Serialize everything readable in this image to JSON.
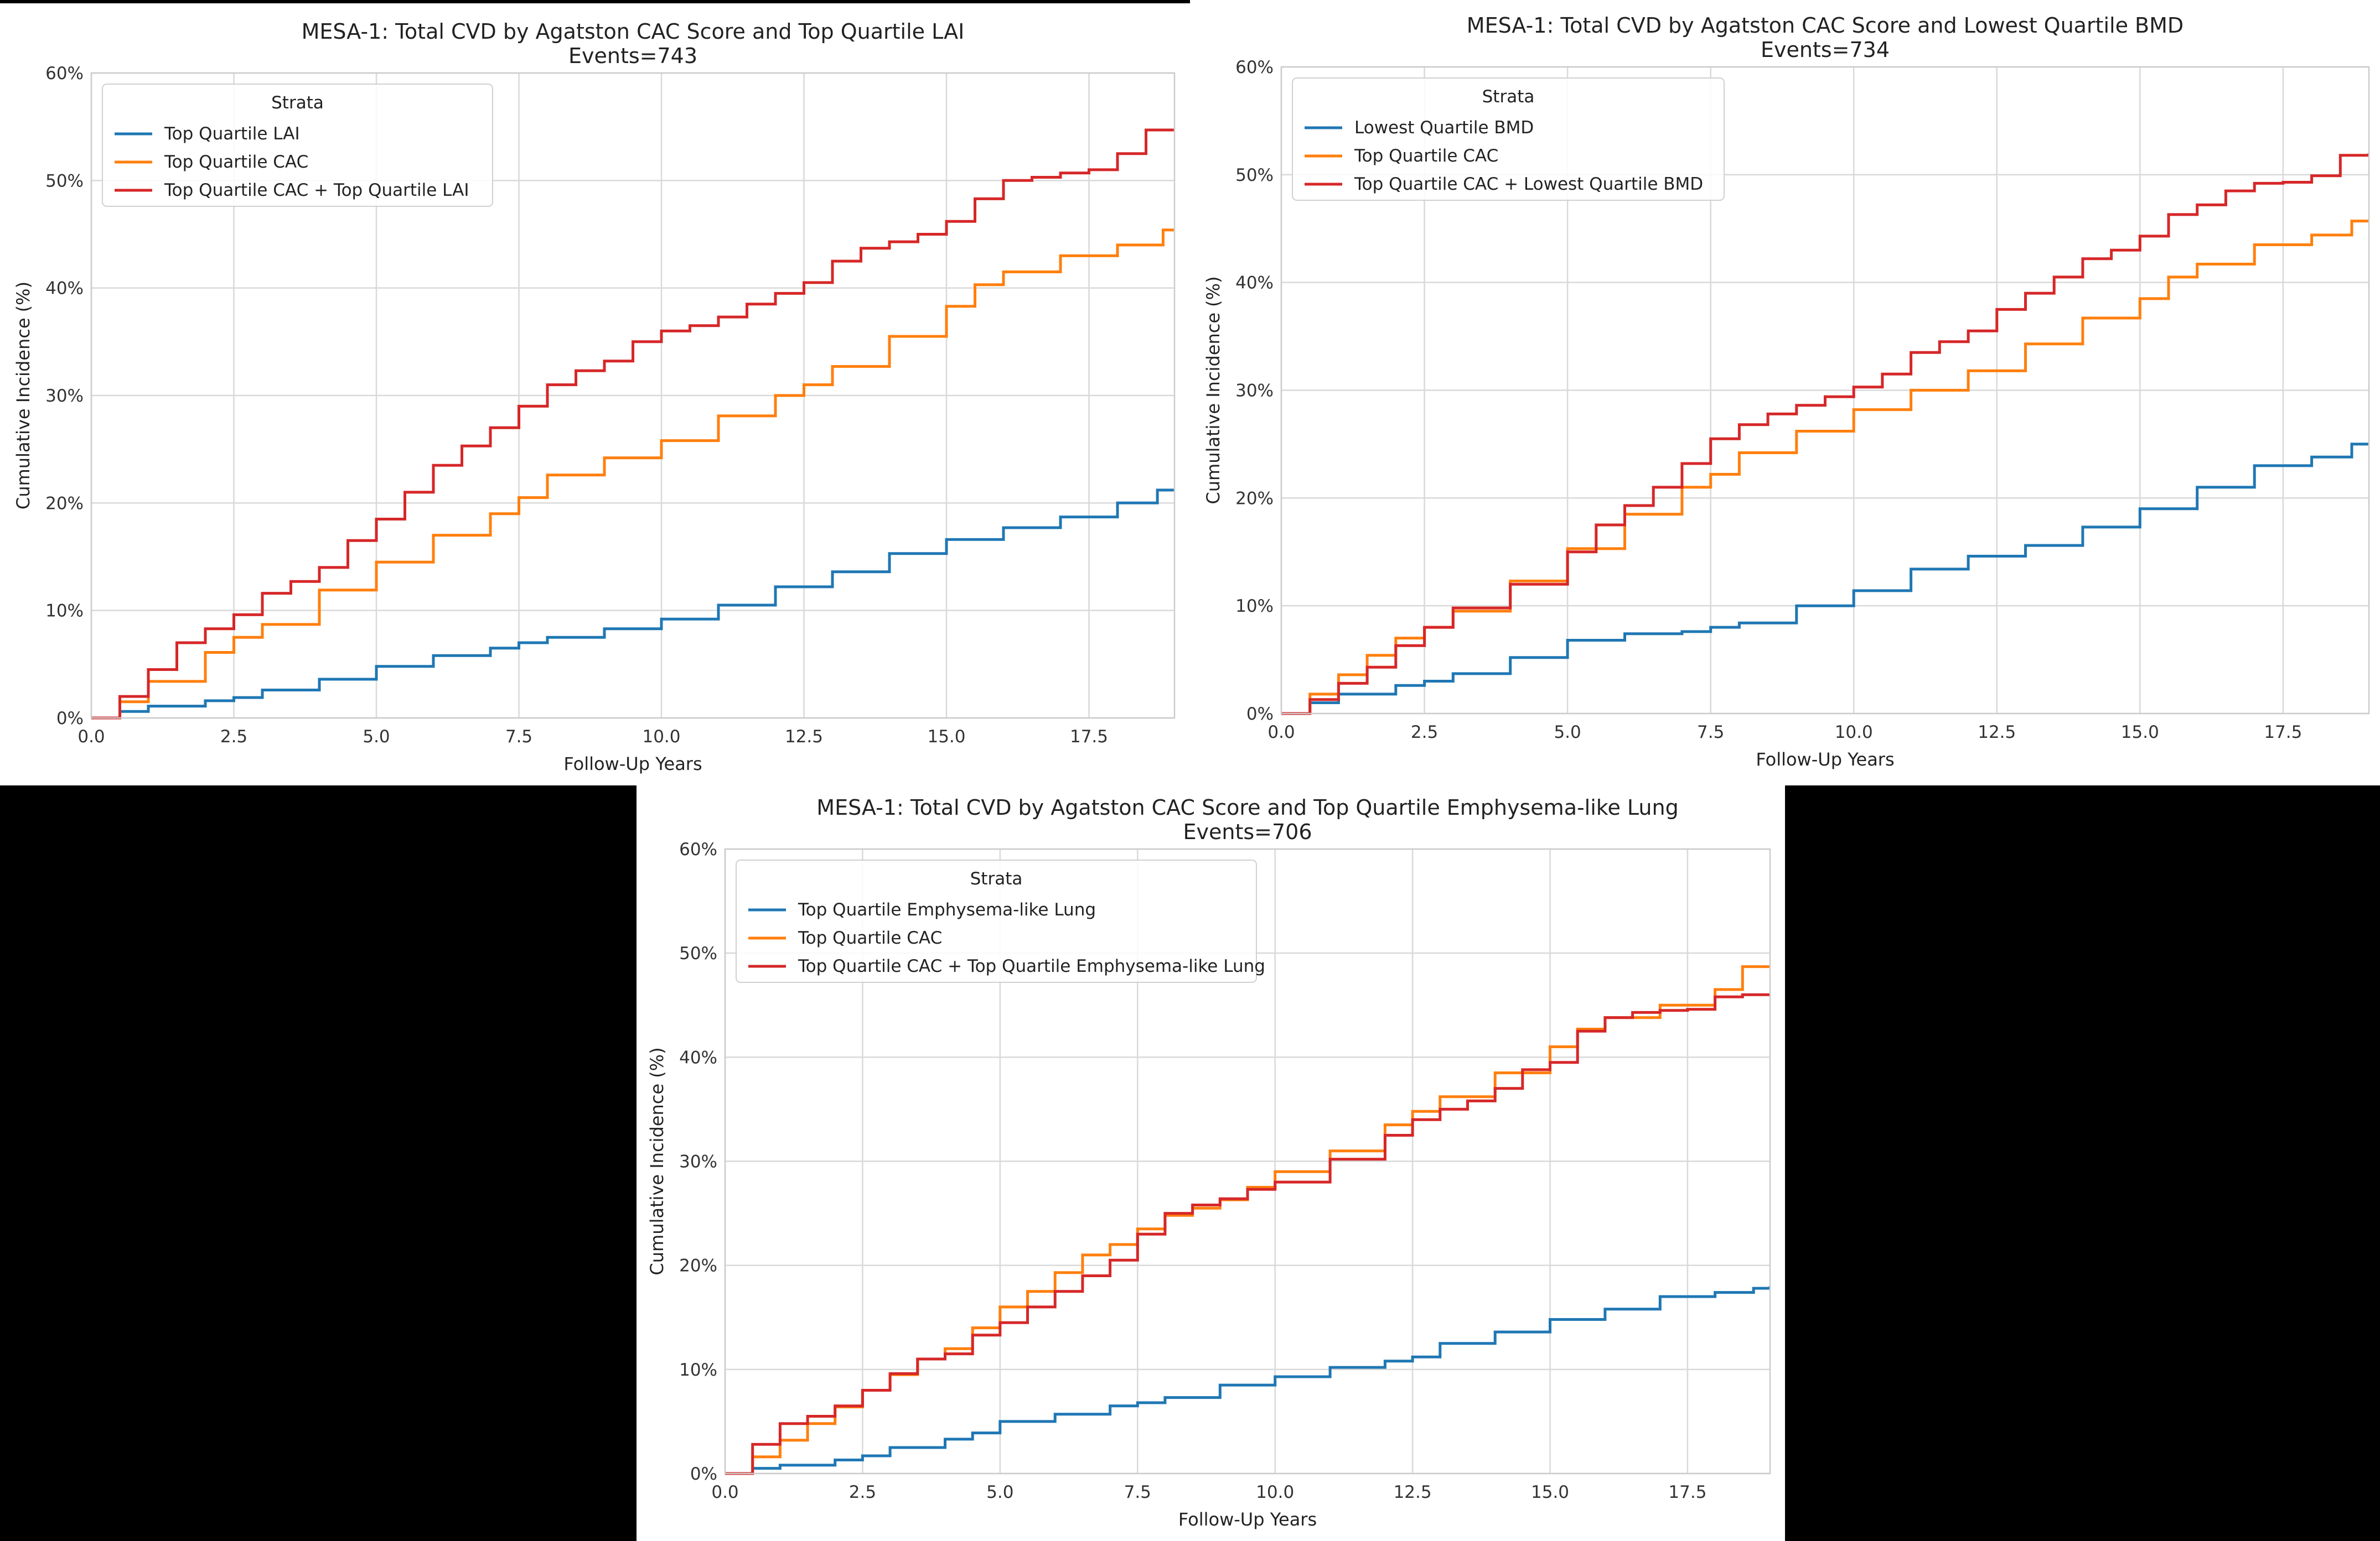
{
  "chart_data": [
    {
      "type": "line",
      "title": "MESA-1: Total CVD by Agatston CAC Score and Top Quartile LAI",
      "subtitle": "Events=743",
      "xlabel": "Follow-Up Years",
      "ylabel": "Cumulative Incidence (%)",
      "xlim": [
        0,
        19
      ],
      "ylim": [
        0,
        60
      ],
      "xticks": [
        "0.0",
        "2.5",
        "5.0",
        "7.5",
        "10.0",
        "12.5",
        "15.0",
        "17.5"
      ],
      "yticks": [
        "0%",
        "10%",
        "20%",
        "30%",
        "40%",
        "50%",
        "60%"
      ],
      "legend_title": "Strata",
      "legend_position": "upper-left",
      "grid": true,
      "series": [
        {
          "name": "Top Quartile LAI",
          "color": "#1f77b4",
          "x": [
            0,
            0.5,
            1,
            2,
            2.5,
            3,
            4,
            5,
            6,
            7,
            7.5,
            8,
            9,
            10,
            11,
            12,
            13,
            14,
            15,
            16,
            17,
            18,
            18.7,
            19
          ],
          "y": [
            0,
            0.6,
            1.1,
            1.6,
            1.9,
            2.6,
            3.6,
            4.8,
            5.8,
            6.5,
            7.0,
            7.5,
            8.3,
            9.2,
            10.5,
            12.2,
            13.6,
            15.3,
            16.6,
            17.7,
            18.7,
            20.0,
            21.2,
            21.3
          ]
        },
        {
          "name": "Top Quartile CAC",
          "color": "#ff7f0e",
          "x": [
            0,
            0.5,
            1,
            2,
            2.5,
            3,
            4,
            5,
            6,
            7,
            7.5,
            8,
            9,
            10,
            11,
            12,
            12.5,
            13,
            14,
            15,
            15.5,
            16,
            17,
            18,
            18.8,
            19
          ],
          "y": [
            0,
            1.5,
            3.4,
            6.1,
            7.5,
            8.7,
            11.9,
            14.5,
            17.0,
            19.0,
            20.5,
            22.6,
            24.2,
            25.8,
            28.1,
            30.0,
            31.0,
            32.7,
            35.5,
            38.3,
            40.3,
            41.5,
            43.0,
            44.0,
            45.4,
            45.4
          ]
        },
        {
          "name": "Top Quartile CAC + Top Quartile LAI",
          "color": "#d62728",
          "x": [
            0,
            0.5,
            1,
            1.5,
            2,
            2.5,
            3,
            3.5,
            4,
            4.5,
            5,
            5.5,
            6,
            6.5,
            7,
            7.5,
            8,
            8.5,
            9,
            9.5,
            10,
            10.5,
            11,
            11.5,
            12,
            12.5,
            13,
            13.5,
            14,
            14.5,
            15,
            15.5,
            16,
            16.5,
            17,
            17.5,
            18,
            18.5,
            19
          ],
          "y": [
            0,
            2.0,
            4.5,
            7.0,
            8.3,
            9.6,
            11.6,
            12.7,
            14.0,
            16.5,
            18.5,
            21.0,
            23.5,
            25.3,
            27.0,
            29.0,
            31.0,
            32.3,
            33.2,
            35.0,
            36.0,
            36.5,
            37.3,
            38.5,
            39.5,
            40.5,
            42.5,
            43.7,
            44.3,
            45.0,
            46.2,
            48.3,
            50.0,
            50.3,
            50.7,
            51.0,
            52.5,
            54.7,
            54.7
          ]
        }
      ]
    },
    {
      "type": "line",
      "title": "MESA-1: Total CVD by Agatston CAC Score and Lowest Quartile BMD",
      "subtitle": "Events=734",
      "xlabel": "Follow-Up Years",
      "ylabel": "Cumulative Incidence (%)",
      "xlim": [
        0,
        19
      ],
      "ylim": [
        0,
        60
      ],
      "xticks": [
        "0.0",
        "2.5",
        "5.0",
        "7.5",
        "10.0",
        "12.5",
        "15.0",
        "17.5"
      ],
      "yticks": [
        "0%",
        "10%",
        "20%",
        "30%",
        "40%",
        "50%",
        "60%"
      ],
      "legend_title": "Strata",
      "legend_position": "upper-left",
      "grid": true,
      "series": [
        {
          "name": "Lowest Quartile BMD",
          "color": "#1f77b4",
          "x": [
            0,
            0.5,
            1,
            2,
            2.5,
            3,
            4,
            5,
            6,
            7,
            7.5,
            8,
            9,
            10,
            11,
            12,
            13,
            14,
            15,
            16,
            17,
            18,
            18.7,
            19
          ],
          "y": [
            0,
            1.0,
            1.8,
            2.6,
            3.0,
            3.7,
            5.2,
            6.8,
            7.4,
            7.6,
            8.0,
            8.4,
            10.0,
            11.4,
            13.4,
            14.6,
            15.6,
            17.3,
            19.0,
            21.0,
            23.0,
            23.8,
            25.0,
            25.0
          ]
        },
        {
          "name": "Top Quartile CAC",
          "color": "#ff7f0e",
          "x": [
            0,
            0.5,
            1,
            1.5,
            2,
            2.5,
            3,
            4,
            5,
            6,
            7,
            7.5,
            8,
            9,
            10,
            11,
            12,
            13,
            14,
            15,
            15.5,
            16,
            17,
            18,
            18.7,
            19
          ],
          "y": [
            0,
            1.8,
            3.6,
            5.4,
            7.0,
            8.0,
            9.5,
            12.3,
            15.3,
            18.5,
            21.0,
            22.2,
            24.2,
            26.2,
            28.2,
            30.0,
            31.8,
            34.3,
            36.7,
            38.5,
            40.5,
            41.7,
            43.5,
            44.4,
            45.7,
            45.7
          ]
        },
        {
          "name": "Top Quartile CAC + Lowest Quartile BMD",
          "color": "#d62728",
          "x": [
            0,
            0.5,
            1,
            1.5,
            2,
            2.5,
            3,
            4,
            5,
            5.5,
            6,
            6.5,
            7,
            7.5,
            8,
            8.5,
            9,
            9.5,
            10,
            10.5,
            11,
            11.5,
            12,
            12.5,
            13,
            13.5,
            14,
            14.5,
            15,
            15.5,
            16,
            16.5,
            17,
            17.5,
            18,
            18.5,
            19
          ],
          "y": [
            0,
            1.3,
            2.8,
            4.3,
            6.3,
            8.0,
            9.8,
            12.0,
            15.0,
            17.5,
            19.3,
            21.0,
            23.2,
            25.5,
            26.8,
            27.8,
            28.6,
            29.4,
            30.3,
            31.5,
            33.5,
            34.5,
            35.5,
            37.5,
            39.0,
            40.5,
            42.2,
            43.0,
            44.3,
            46.3,
            47.2,
            48.5,
            49.2,
            49.3,
            49.9,
            51.8,
            52.0
          ]
        }
      ]
    },
    {
      "type": "line",
      "title": "MESA-1: Total CVD by Agatston CAC Score and Top Quartile Emphysema-like Lung",
      "subtitle": "Events=706",
      "xlabel": "Follow-Up Years",
      "ylabel": "Cumulative Incidence (%)",
      "xlim": [
        0,
        19
      ],
      "ylim": [
        0,
        60
      ],
      "xticks": [
        "0.0",
        "2.5",
        "5.0",
        "7.5",
        "10.0",
        "12.5",
        "15.0",
        "17.5"
      ],
      "yticks": [
        "0%",
        "10%",
        "20%",
        "30%",
        "40%",
        "50%",
        "60%"
      ],
      "legend_title": "Strata",
      "legend_position": "upper-left",
      "grid": true,
      "series": [
        {
          "name": "Top Quartile Emphysema-like Lung",
          "color": "#1f77b4",
          "x": [
            0,
            0.5,
            1,
            2,
            2.5,
            3,
            4,
            4.5,
            5,
            6,
            7,
            7.5,
            8,
            9,
            10,
            11,
            12,
            12.5,
            13,
            14,
            15,
            16,
            17,
            18,
            18.7,
            19
          ],
          "y": [
            0,
            0.5,
            0.8,
            1.3,
            1.7,
            2.5,
            3.3,
            3.9,
            5.0,
            5.7,
            6.5,
            6.8,
            7.3,
            8.5,
            9.3,
            10.2,
            10.8,
            11.2,
            12.5,
            13.6,
            14.8,
            15.8,
            17.0,
            17.4,
            17.8,
            18.0
          ]
        },
        {
          "name": "Top Quartile CAC",
          "color": "#ff7f0e",
          "x": [
            0,
            0.5,
            1,
            1.5,
            2,
            2.5,
            3,
            3.5,
            4,
            4.5,
            5,
            5.5,
            6,
            6.5,
            7,
            7.5,
            8,
            8.5,
            9,
            9.5,
            10,
            11,
            12,
            12.5,
            13,
            14,
            15,
            15.5,
            16,
            17,
            18,
            18.5,
            19
          ],
          "y": [
            0,
            1.6,
            3.2,
            4.8,
            6.4,
            8.0,
            9.5,
            11.0,
            12.0,
            14.0,
            16.0,
            17.5,
            19.3,
            21.0,
            22.0,
            23.5,
            24.8,
            25.5,
            26.3,
            27.5,
            29.0,
            31.0,
            33.5,
            34.8,
            36.2,
            38.5,
            41.0,
            42.7,
            43.8,
            45.0,
            46.5,
            48.7,
            48.7
          ]
        },
        {
          "name": "Top Quartile CAC + Top Quartile Emphysema-like Lung",
          "color": "#d62728",
          "x": [
            0,
            0.5,
            1,
            1.5,
            2,
            2.5,
            3,
            3.5,
            4,
            4.5,
            5,
            5.5,
            6,
            6.5,
            7,
            7.5,
            8,
            8.5,
            9,
            9.5,
            10,
            11,
            12,
            12.5,
            13,
            13.5,
            14,
            14.5,
            15,
            15.5,
            16,
            16.5,
            17,
            17.5,
            18,
            18.5,
            19
          ],
          "y": [
            0,
            2.8,
            4.8,
            5.5,
            6.5,
            8.0,
            9.6,
            11.0,
            11.5,
            13.3,
            14.5,
            16.0,
            17.5,
            19.0,
            20.5,
            23.0,
            25.0,
            25.8,
            26.4,
            27.3,
            28.0,
            30.2,
            32.5,
            34.0,
            35.0,
            35.8,
            37.0,
            38.8,
            39.5,
            42.5,
            43.8,
            44.3,
            44.5,
            44.6,
            45.8,
            46.0,
            46.0
          ]
        }
      ]
    }
  ]
}
